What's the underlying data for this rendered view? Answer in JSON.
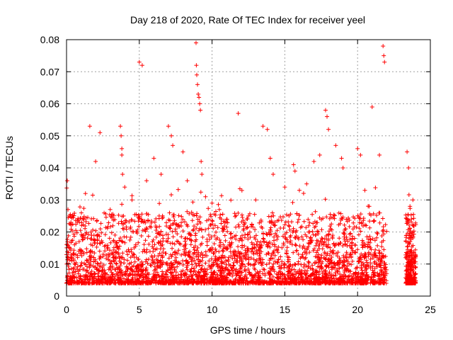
{
  "chart_data": {
    "type": "scatter",
    "title": "Day 218 of 2020, Rate Of TEC Index for receiver yeel",
    "xlabel": "GPS time / hours",
    "ylabel": "ROTI / TECUs",
    "xlim": [
      0,
      25
    ],
    "ylim": [
      0,
      0.08
    ],
    "x_ticks": [
      0,
      5,
      10,
      15,
      20,
      25
    ],
    "x_tick_labels": [
      "0",
      "5",
      "10",
      "15",
      "20",
      "25"
    ],
    "y_ticks": [
      0,
      0.01,
      0.02,
      0.03,
      0.04,
      0.05,
      0.06,
      0.07,
      0.08
    ],
    "y_tick_labels": [
      "0",
      "0.01",
      "0.02",
      "0.03",
      "0.04",
      "0.05",
      "0.06",
      "0.07",
      "0.08"
    ],
    "grid": true,
    "marker": "+",
    "color": "#ff0000",
    "data_gap_hours": [
      22.0,
      23.3
    ],
    "coverage_hours": [
      [
        0.0,
        22.0
      ],
      [
        23.3,
        24.0
      ]
    ],
    "series": [
      {
        "name": "ROTI",
        "x": [
          0.05,
          0.1,
          0.2,
          0.3,
          1.3,
          1.6,
          2.0,
          2.3,
          3.0,
          3.7,
          3.75,
          3.8,
          3.8,
          3.85,
          4.0,
          4.5,
          5.0,
          5.2,
          5.5,
          6.0,
          6.5,
          7.0,
          7.2,
          7.3,
          8.0,
          8.3,
          8.9,
          8.92,
          8.95,
          9.0,
          9.05,
          9.1,
          9.15,
          9.2,
          9.25,
          9.3,
          10.0,
          10.5,
          11.0,
          11.8,
          12.5,
          13.0,
          13.5,
          13.8,
          14.0,
          14.2,
          15.0,
          15.6,
          15.7,
          16.0,
          16.5,
          17.0,
          17.4,
          17.8,
          17.9,
          18.0,
          18.5,
          18.9,
          19.0,
          20.0,
          20.2,
          20.5,
          20.8,
          21.0,
          21.5,
          21.75,
          21.8,
          21.85,
          23.4,
          23.5,
          23.6,
          23.8
        ],
        "y": [
          0.036,
          0.027,
          0.025,
          0.023,
          0.032,
          0.053,
          0.042,
          0.051,
          0.027,
          0.053,
          0.05,
          0.046,
          0.044,
          0.038,
          0.034,
          0.03,
          0.073,
          0.072,
          0.036,
          0.043,
          0.038,
          0.053,
          0.05,
          0.047,
          0.045,
          0.036,
          0.079,
          0.072,
          0.069,
          0.066,
          0.063,
          0.062,
          0.06,
          0.058,
          0.042,
          0.038,
          0.029,
          0.027,
          0.024,
          0.057,
          0.025,
          0.03,
          0.053,
          0.052,
          0.043,
          0.038,
          0.034,
          0.041,
          0.039,
          0.033,
          0.035,
          0.042,
          0.044,
          0.058,
          0.056,
          0.052,
          0.047,
          0.043,
          0.04,
          0.046,
          0.044,
          0.033,
          0.028,
          0.059,
          0.044,
          0.078,
          0.075,
          0.073,
          0.045,
          0.04,
          0.028,
          0.03
        ]
      }
    ]
  }
}
